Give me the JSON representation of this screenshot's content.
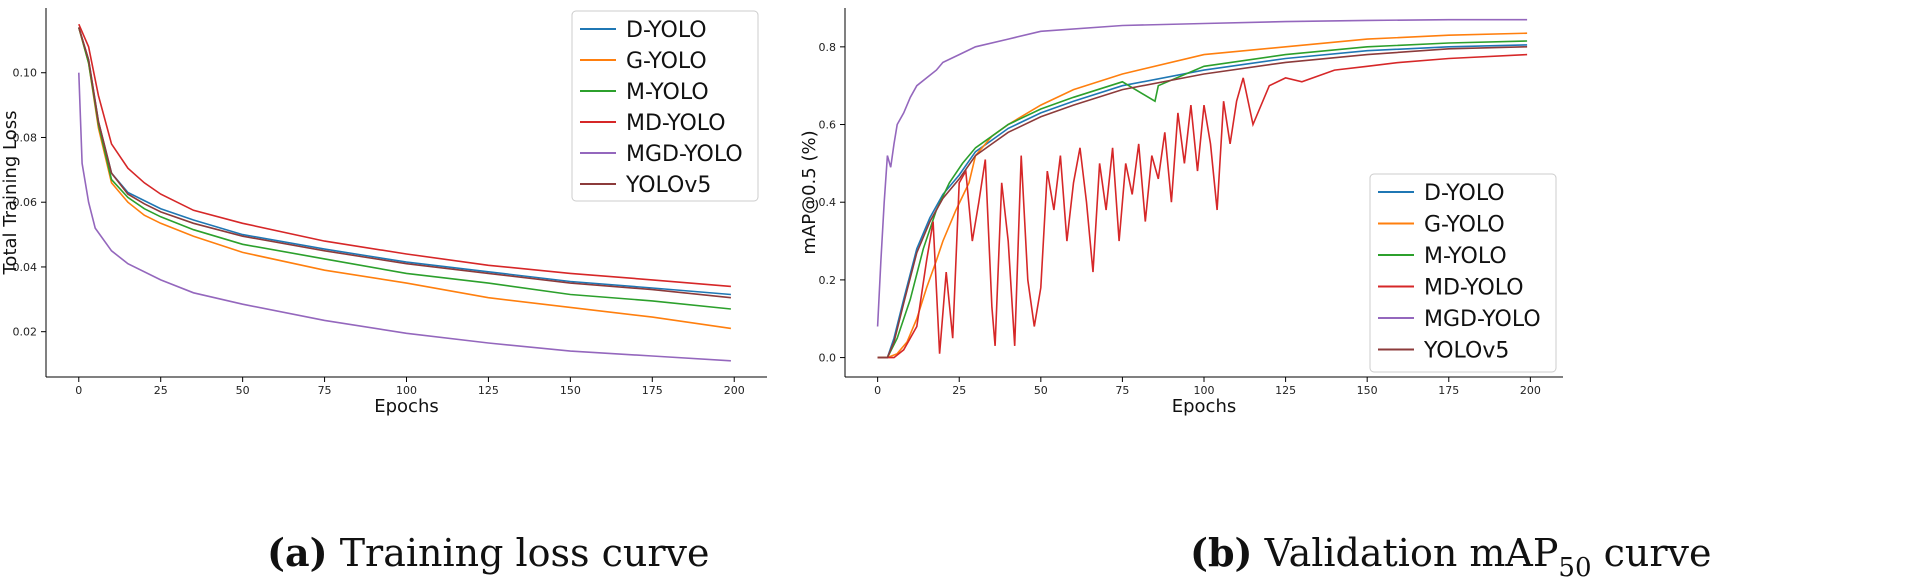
{
  "chart_data": [
    {
      "type": "line",
      "caption_prefix": "(a)",
      "caption_text": "Training loss curve",
      "xlabel": "Epochs",
      "ylabel": "Total Training Loss",
      "xlim": [
        -10,
        210
      ],
      "ylim": [
        0.006,
        0.12
      ],
      "xticks": [
        0,
        25,
        50,
        75,
        100,
        125,
        150,
        175,
        200
      ],
      "yticks": [
        0.02,
        0.04,
        0.06,
        0.08,
        0.1
      ],
      "ytick_labels": [
        "0.02",
        "0.04",
        "0.06",
        "0.08",
        "0.10"
      ],
      "legend_position": "top-right",
      "series": [
        {
          "name": "D-YOLO",
          "color": "#1f77b4",
          "points": [
            [
              0,
              0.114
            ],
            [
              3,
              0.104
            ],
            [
              6,
              0.085
            ],
            [
              10,
              0.069
            ],
            [
              15,
              0.063
            ],
            [
              20,
              0.0605
            ],
            [
              25,
              0.058
            ],
            [
              35,
              0.0545
            ],
            [
              50,
              0.05
            ],
            [
              75,
              0.0455
            ],
            [
              100,
              0.0415
            ],
            [
              125,
              0.0385
            ],
            [
              150,
              0.0355
            ],
            [
              175,
              0.0335
            ],
            [
              199,
              0.0315
            ]
          ]
        },
        {
          "name": "G-YOLO",
          "color": "#ff7f0e",
          "points": [
            [
              0,
              0.114
            ],
            [
              3,
              0.103
            ],
            [
              6,
              0.083
            ],
            [
              10,
              0.066
            ],
            [
              15,
              0.06
            ],
            [
              20,
              0.056
            ],
            [
              25,
              0.0535
            ],
            [
              35,
              0.0495
            ],
            [
              50,
              0.0445
            ],
            [
              75,
              0.039
            ],
            [
              100,
              0.035
            ],
            [
              125,
              0.0305
            ],
            [
              150,
              0.0275
            ],
            [
              175,
              0.0245
            ],
            [
              199,
              0.021
            ]
          ]
        },
        {
          "name": "M-YOLO",
          "color": "#2ca02c",
          "points": [
            [
              0,
              0.114
            ],
            [
              3,
              0.103
            ],
            [
              6,
              0.084
            ],
            [
              10,
              0.067
            ],
            [
              15,
              0.0615
            ],
            [
              20,
              0.058
            ],
            [
              25,
              0.0555
            ],
            [
              35,
              0.0515
            ],
            [
              50,
              0.047
            ],
            [
              75,
              0.0425
            ],
            [
              100,
              0.038
            ],
            [
              125,
              0.035
            ],
            [
              150,
              0.0315
            ],
            [
              175,
              0.0295
            ],
            [
              199,
              0.027
            ]
          ]
        },
        {
          "name": "MD-YOLO",
          "color": "#d62728",
          "points": [
            [
              0,
              0.115
            ],
            [
              3,
              0.108
            ],
            [
              6,
              0.093
            ],
            [
              10,
              0.078
            ],
            [
              15,
              0.0705
            ],
            [
              20,
              0.066
            ],
            [
              25,
              0.0625
            ],
            [
              35,
              0.0575
            ],
            [
              50,
              0.0535
            ],
            [
              75,
              0.048
            ],
            [
              100,
              0.044
            ],
            [
              125,
              0.0405
            ],
            [
              150,
              0.038
            ],
            [
              175,
              0.036
            ],
            [
              199,
              0.034
            ]
          ]
        },
        {
          "name": "MGD-YOLO",
          "color": "#9467bd",
          "points": [
            [
              0,
              0.1
            ],
            [
              1,
              0.072
            ],
            [
              3,
              0.06
            ],
            [
              5,
              0.052
            ],
            [
              10,
              0.045
            ],
            [
              15,
              0.041
            ],
            [
              25,
              0.036
            ],
            [
              35,
              0.032
            ],
            [
              50,
              0.0285
            ],
            [
              75,
              0.0235
            ],
            [
              100,
              0.0195
            ],
            [
              125,
              0.0165
            ],
            [
              150,
              0.014
            ],
            [
              175,
              0.0125
            ],
            [
              199,
              0.011
            ]
          ]
        },
        {
          "name": "YOLOv5",
          "color": "#8c3b3b",
          "points": [
            [
              0,
              0.114
            ],
            [
              3,
              0.104
            ],
            [
              6,
              0.085
            ],
            [
              10,
              0.069
            ],
            [
              15,
              0.0625
            ],
            [
              20,
              0.0595
            ],
            [
              25,
              0.057
            ],
            [
              35,
              0.0535
            ],
            [
              50,
              0.0495
            ],
            [
              75,
              0.045
            ],
            [
              100,
              0.041
            ],
            [
              125,
              0.038
            ],
            [
              150,
              0.035
            ],
            [
              175,
              0.033
            ],
            [
              199,
              0.0305
            ]
          ]
        }
      ]
    },
    {
      "type": "line",
      "caption_prefix": "(b)",
      "caption_main": "Validation mAP",
      "caption_sub": "50",
      "caption_suffix": "curve",
      "xlabel": "Epochs",
      "ylabel": "mAP@0.5 (%)",
      "xlim": [
        -10,
        210
      ],
      "ylim": [
        -0.05,
        0.9
      ],
      "xticks": [
        0,
        25,
        50,
        75,
        100,
        125,
        150,
        175,
        200
      ],
      "yticks": [
        0.0,
        0.2,
        0.4,
        0.6,
        0.8
      ],
      "ytick_labels": [
        "0.0",
        "0.2",
        "0.4",
        "0.6",
        "0.8"
      ],
      "legend_position": "bottom-right",
      "series": [
        {
          "name": "D-YOLO",
          "color": "#1f77b4",
          "points": [
            [
              0,
              0
            ],
            [
              3,
              0.0
            ],
            [
              5,
              0.05
            ],
            [
              8,
              0.15
            ],
            [
              12,
              0.28
            ],
            [
              16,
              0.36
            ],
            [
              20,
              0.42
            ],
            [
              25,
              0.47
            ],
            [
              30,
              0.53
            ],
            [
              35,
              0.56
            ],
            [
              40,
              0.59
            ],
            [
              50,
              0.63
            ],
            [
              60,
              0.66
            ],
            [
              75,
              0.7
            ],
            [
              100,
              0.74
            ],
            [
              125,
              0.77
            ],
            [
              150,
              0.79
            ],
            [
              175,
              0.8
            ],
            [
              199,
              0.805
            ]
          ]
        },
        {
          "name": "G-YOLO",
          "color": "#ff7f0e",
          "points": [
            [
              0,
              0
            ],
            [
              3,
              0.0
            ],
            [
              6,
              0.01
            ],
            [
              9,
              0.04
            ],
            [
              12,
              0.1
            ],
            [
              15,
              0.18
            ],
            [
              18,
              0.25
            ],
            [
              20,
              0.3
            ],
            [
              24,
              0.38
            ],
            [
              28,
              0.45
            ],
            [
              30,
              0.52
            ],
            [
              35,
              0.57
            ],
            [
              40,
              0.6
            ],
            [
              50,
              0.65
            ],
            [
              60,
              0.69
            ],
            [
              75,
              0.73
            ],
            [
              100,
              0.78
            ],
            [
              125,
              0.8
            ],
            [
              150,
              0.82
            ],
            [
              175,
              0.83
            ],
            [
              199,
              0.835
            ]
          ]
        },
        {
          "name": "M-YOLO",
          "color": "#2ca02c",
          "points": [
            [
              0,
              0
            ],
            [
              3,
              0.0
            ],
            [
              6,
              0.05
            ],
            [
              10,
              0.15
            ],
            [
              14,
              0.28
            ],
            [
              18,
              0.38
            ],
            [
              22,
              0.45
            ],
            [
              26,
              0.5
            ],
            [
              30,
              0.54
            ],
            [
              35,
              0.57
            ],
            [
              40,
              0.6
            ],
            [
              50,
              0.64
            ],
            [
              60,
              0.67
            ],
            [
              75,
              0.71
            ],
            [
              85,
              0.66
            ],
            [
              86,
              0.7
            ],
            [
              100,
              0.75
            ],
            [
              125,
              0.78
            ],
            [
              150,
              0.8
            ],
            [
              175,
              0.81
            ],
            [
              199,
              0.815
            ]
          ]
        },
        {
          "name": "MD-YOLO",
          "color": "#d62728",
          "points": [
            [
              0,
              0
            ],
            [
              5,
              0
            ],
            [
              8,
              0.02
            ],
            [
              12,
              0.08
            ],
            [
              15,
              0.25
            ],
            [
              17,
              0.35
            ],
            [
              19,
              0.01
            ],
            [
              21,
              0.22
            ],
            [
              23,
              0.05
            ],
            [
              25,
              0.45
            ],
            [
              27,
              0.48
            ],
            [
              29,
              0.3
            ],
            [
              31,
              0.4
            ],
            [
              33,
              0.51
            ],
            [
              35,
              0.13
            ],
            [
              36,
              0.03
            ],
            [
              38,
              0.45
            ],
            [
              40,
              0.3
            ],
            [
              42,
              0.03
            ],
            [
              44,
              0.52
            ],
            [
              46,
              0.2
            ],
            [
              48,
              0.08
            ],
            [
              50,
              0.18
            ],
            [
              52,
              0.48
            ],
            [
              54,
              0.38
            ],
            [
              56,
              0.52
            ],
            [
              58,
              0.3
            ],
            [
              60,
              0.45
            ],
            [
              62,
              0.54
            ],
            [
              64,
              0.4
            ],
            [
              66,
              0.22
            ],
            [
              68,
              0.5
            ],
            [
              70,
              0.38
            ],
            [
              72,
              0.54
            ],
            [
              74,
              0.3
            ],
            [
              76,
              0.5
            ],
            [
              78,
              0.42
            ],
            [
              80,
              0.55
            ],
            [
              82,
              0.35
            ],
            [
              84,
              0.52
            ],
            [
              86,
              0.46
            ],
            [
              88,
              0.58
            ],
            [
              90,
              0.4
            ],
            [
              92,
              0.63
            ],
            [
              94,
              0.5
            ],
            [
              96,
              0.65
            ],
            [
              98,
              0.48
            ],
            [
              100,
              0.65
            ],
            [
              102,
              0.55
            ],
            [
              104,
              0.38
            ],
            [
              106,
              0.66
            ],
            [
              108,
              0.55
            ],
            [
              110,
              0.66
            ],
            [
              112,
              0.72
            ],
            [
              115,
              0.6
            ],
            [
              120,
              0.7
            ],
            [
              125,
              0.72
            ],
            [
              130,
              0.71
            ],
            [
              140,
              0.74
            ],
            [
              150,
              0.75
            ],
            [
              160,
              0.76
            ],
            [
              175,
              0.77
            ],
            [
              199,
              0.78
            ]
          ]
        },
        {
          "name": "MGD-YOLO",
          "color": "#9467bd",
          "points": [
            [
              0,
              0.08
            ],
            [
              1,
              0.25
            ],
            [
              2,
              0.4
            ],
            [
              3,
              0.52
            ],
            [
              4,
              0.49
            ],
            [
              5,
              0.55
            ],
            [
              6,
              0.6
            ],
            [
              8,
              0.63
            ],
            [
              10,
              0.67
            ],
            [
              12,
              0.7
            ],
            [
              15,
              0.72
            ],
            [
              18,
              0.74
            ],
            [
              20,
              0.76
            ],
            [
              25,
              0.78
            ],
            [
              30,
              0.8
            ],
            [
              40,
              0.82
            ],
            [
              50,
              0.84
            ],
            [
              75,
              0.855
            ],
            [
              100,
              0.86
            ],
            [
              125,
              0.865
            ],
            [
              150,
              0.868
            ],
            [
              175,
              0.87
            ],
            [
              199,
              0.87
            ]
          ]
        },
        {
          "name": "YOLOv5",
          "color": "#8c3b3b",
          "points": [
            [
              0,
              0
            ],
            [
              3,
              0.0
            ],
            [
              5,
              0.04
            ],
            [
              8,
              0.14
            ],
            [
              12,
              0.27
            ],
            [
              16,
              0.35
            ],
            [
              20,
              0.41
            ],
            [
              25,
              0.46
            ],
            [
              30,
              0.52
            ],
            [
              35,
              0.55
            ],
            [
              40,
              0.58
            ],
            [
              50,
              0.62
            ],
            [
              60,
              0.65
            ],
            [
              75,
              0.69
            ],
            [
              100,
              0.73
            ],
            [
              125,
              0.76
            ],
            [
              150,
              0.78
            ],
            [
              175,
              0.795
            ],
            [
              199,
              0.8
            ]
          ]
        }
      ]
    }
  ]
}
